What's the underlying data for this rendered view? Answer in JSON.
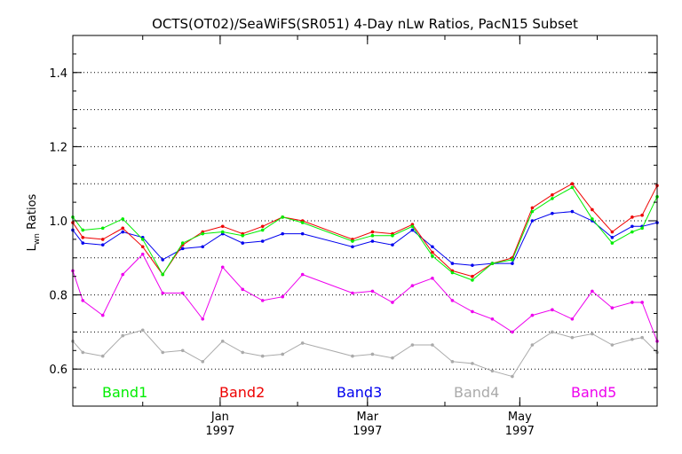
{
  "chart_data": {
    "type": "line",
    "title": "OCTS(OT02)/SeaWiFS(SR051) 4-Day nLw Ratios, PacN15 Subset",
    "ylabel_main": "L",
    "ylabel_sub": "wn",
    "ylabel_rest": " Ratios",
    "xlabel": "",
    "ylim": [
      0.5,
      1.5
    ],
    "xlim": [
      "1996-11-03",
      "1997-06-25"
    ],
    "yticks": [
      {
        "value": 0.6,
        "label": "0.6"
      },
      {
        "value": 0.8,
        "label": "0.8"
      },
      {
        "value": 1.0,
        "label": "1.0"
      },
      {
        "value": 1.2,
        "label": "1.2"
      },
      {
        "value": 1.4,
        "label": "1.4"
      }
    ],
    "gridlines": [
      0.6,
      0.7,
      0.8,
      0.9,
      1.0,
      1.1,
      1.2,
      1.3,
      1.4
    ],
    "grid": "dotted horizontal",
    "xticks": [
      {
        "date": "1997-01-01",
        "month": "Jan",
        "year": "1997"
      },
      {
        "date": "1997-03-01",
        "month": "Mar",
        "year": "1997"
      },
      {
        "date": "1997-05-01",
        "month": "May",
        "year": "1997"
      }
    ],
    "x": [
      "1996-11-03",
      "1996-11-07",
      "1996-11-15",
      "1996-11-23",
      "1996-12-01",
      "1996-12-09",
      "1996-12-17",
      "1996-12-25",
      "1997-01-02",
      "1997-01-10",
      "1997-01-18",
      "1997-01-26",
      "1997-02-03",
      "1997-02-23",
      "1997-03-03",
      "1997-03-11",
      "1997-03-19",
      "1997-03-27",
      "1997-04-04",
      "1997-04-12",
      "1997-04-20",
      "1997-04-28",
      "1997-05-06",
      "1997-05-14",
      "1997-05-22",
      "1997-05-30",
      "1997-06-07",
      "1997-06-15",
      "1997-06-19",
      "1997-06-25"
    ],
    "series": [
      {
        "name": "Band1",
        "color": "#00ee00",
        "values": [
          1.01,
          0.975,
          0.98,
          1.005,
          0.95,
          0.855,
          0.94,
          0.965,
          0.97,
          0.96,
          0.975,
          1.01,
          0.995,
          0.945,
          0.96,
          0.96,
          0.985,
          0.905,
          0.86,
          0.84,
          0.885,
          0.895,
          1.025,
          1.06,
          1.09,
          1.005,
          0.94,
          0.97,
          0.98,
          1.065
        ]
      },
      {
        "name": "Band2",
        "color": "#ee0000",
        "values": [
          0.995,
          0.955,
          0.95,
          0.98,
          0.93,
          0.855,
          0.935,
          0.97,
          0.985,
          0.965,
          0.985,
          1.01,
          1.0,
          0.95,
          0.97,
          0.965,
          0.99,
          0.915,
          0.865,
          0.85,
          0.885,
          0.9,
          1.035,
          1.07,
          1.1,
          1.03,
          0.97,
          1.01,
          1.015,
          1.095
        ]
      },
      {
        "name": "Band3",
        "color": "#0000ee",
        "values": [
          0.975,
          0.94,
          0.935,
          0.97,
          0.955,
          0.895,
          0.925,
          0.93,
          0.965,
          0.94,
          0.945,
          0.965,
          0.965,
          0.93,
          0.945,
          0.935,
          0.975,
          0.93,
          0.885,
          0.88,
          0.885,
          0.885,
          1.0,
          1.02,
          1.025,
          1.0,
          0.955,
          0.985,
          0.985,
          0.995
        ]
      },
      {
        "name": "Band4",
        "color": "#aaaaaa",
        "values": [
          0.675,
          0.645,
          0.635,
          0.69,
          0.705,
          0.645,
          0.65,
          0.62,
          0.675,
          0.645,
          0.635,
          0.64,
          0.67,
          0.635,
          0.64,
          0.63,
          0.665,
          0.665,
          0.62,
          0.615,
          0.595,
          0.58,
          0.665,
          0.7,
          0.685,
          0.695,
          0.665,
          0.68,
          0.685,
          0.645
        ]
      },
      {
        "name": "Band5",
        "color": "#ee00ee",
        "values": [
          0.865,
          0.785,
          0.745,
          0.855,
          0.91,
          0.805,
          0.805,
          0.735,
          0.875,
          0.815,
          0.785,
          0.795,
          0.855,
          0.805,
          0.81,
          0.78,
          0.825,
          0.845,
          0.785,
          0.755,
          0.735,
          0.7,
          0.745,
          0.76,
          0.735,
          0.81,
          0.765,
          0.78,
          0.78,
          0.675
        ]
      }
    ],
    "legend": "inside bottom"
  }
}
